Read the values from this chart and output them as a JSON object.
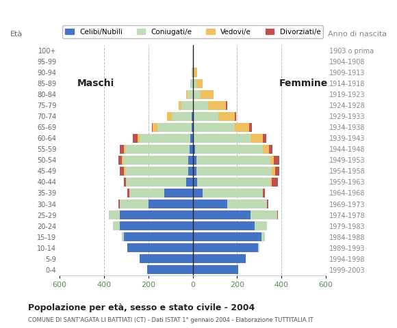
{
  "age_groups": [
    "0-4",
    "5-9",
    "10-14",
    "15-19",
    "20-24",
    "25-29",
    "30-34",
    "35-39",
    "40-44",
    "45-49",
    "50-54",
    "55-59",
    "60-64",
    "65-69",
    "70-74",
    "75-79",
    "80-84",
    "85-89",
    "90-94",
    "95-99",
    "100+"
  ],
  "birth_years": [
    "1999-2003",
    "1994-1998",
    "1989-1993",
    "1984-1988",
    "1979-1983",
    "1974-1978",
    "1969-1973",
    "1964-1968",
    "1959-1963",
    "1954-1958",
    "1949-1953",
    "1944-1948",
    "1939-1943",
    "1934-1938",
    "1929-1933",
    "1924-1928",
    "1919-1923",
    "1914-1918",
    "1909-1913",
    "1904-1908",
    "1903 o prima"
  ],
  "male": {
    "celibi": [
      205,
      240,
      295,
      310,
      330,
      330,
      200,
      130,
      30,
      20,
      20,
      15,
      10,
      5,
      5,
      0,
      0,
      0,
      0,
      0,
      0
    ],
    "coniugati": [
      0,
      0,
      0,
      10,
      30,
      50,
      130,
      155,
      270,
      285,
      295,
      290,
      230,
      155,
      90,
      50,
      25,
      10,
      5,
      0,
      0
    ],
    "vedovi": [
      0,
      0,
      0,
      0,
      0,
      0,
      0,
      0,
      0,
      5,
      5,
      5,
      10,
      20,
      20,
      15,
      5,
      0,
      0,
      0,
      0
    ],
    "divorziati": [
      0,
      0,
      0,
      0,
      0,
      0,
      5,
      10,
      10,
      20,
      15,
      20,
      20,
      5,
      0,
      0,
      0,
      0,
      0,
      0,
      0
    ]
  },
  "female": {
    "nubili": [
      205,
      240,
      295,
      310,
      280,
      260,
      155,
      45,
      20,
      15,
      15,
      10,
      5,
      5,
      5,
      0,
      0,
      0,
      0,
      0,
      0
    ],
    "coniugate": [
      0,
      0,
      5,
      15,
      55,
      120,
      180,
      270,
      330,
      340,
      335,
      305,
      255,
      185,
      110,
      70,
      35,
      15,
      5,
      0,
      0
    ],
    "vedove": [
      0,
      0,
      0,
      0,
      0,
      0,
      0,
      0,
      5,
      15,
      15,
      30,
      55,
      65,
      75,
      80,
      60,
      30,
      15,
      5,
      0
    ],
    "divorziate": [
      0,
      0,
      0,
      0,
      0,
      5,
      5,
      10,
      30,
      20,
      25,
      15,
      15,
      10,
      5,
      5,
      0,
      0,
      0,
      0,
      0
    ]
  },
  "colors": {
    "celibi": "#4472C4",
    "coniugati": "#BEDBB5",
    "vedovi": "#F0C060",
    "divorziati": "#C0504D"
  },
  "legend_labels": [
    "Celibi/Nubili",
    "Coniugati/e",
    "Vedovi/e",
    "Divorziati/e"
  ],
  "title": "Popolazione per età, sesso e stato civile - 2004",
  "subtitle": "COMUNE DI SANT'AGATA LI BATTIATI (CT) - Dati ISTAT 1° gennaio 2004 - Elaborazione TUTTITALIA.IT",
  "label_maschi": "Maschi",
  "label_femmine": "Femmine",
  "label_eta": "Età",
  "label_anno": "Anno di nascita",
  "xlim": 600,
  "background_color": "#ffffff",
  "grid_color": "#bbbbbb",
  "xtick_color": "#5a8a5a",
  "ytick_color": "#666666",
  "birth_year_color": "#888888"
}
